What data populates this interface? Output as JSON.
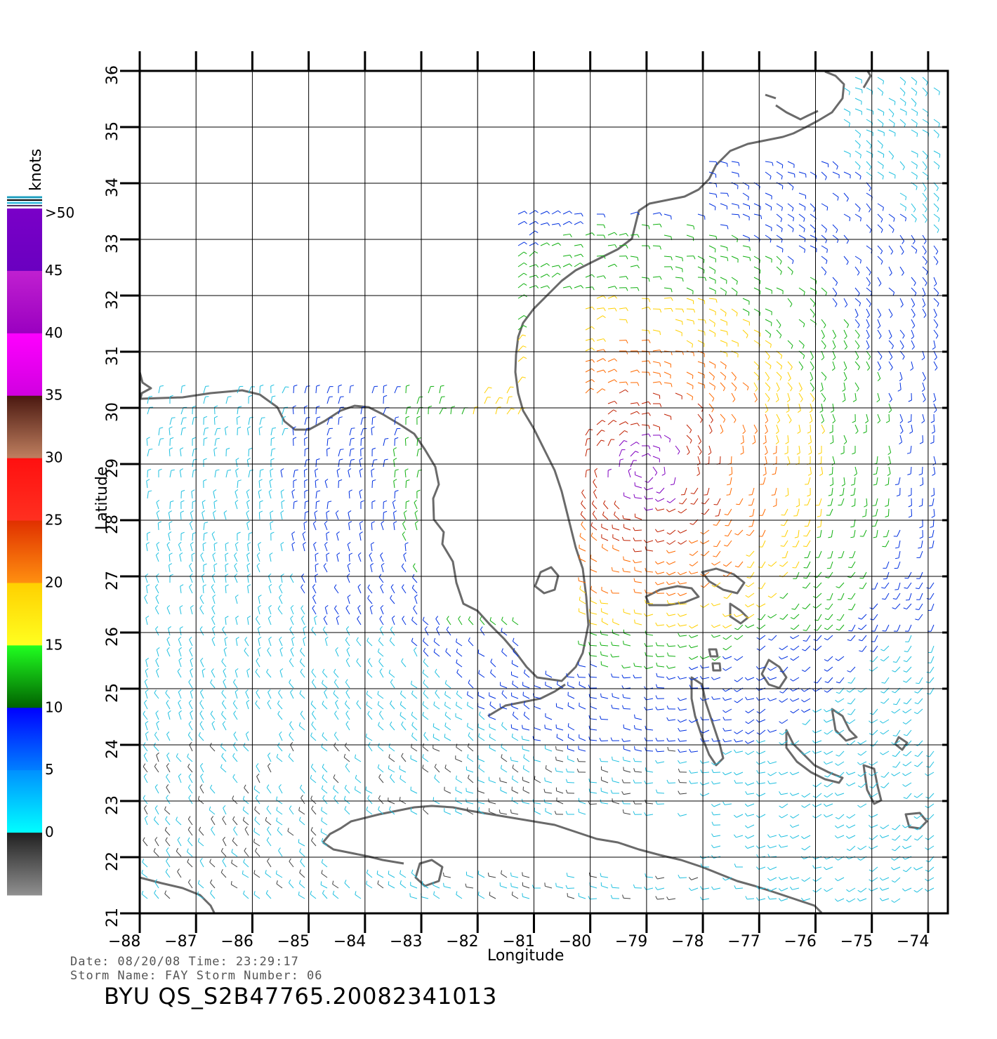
{
  "colorbar": {
    "title": "knots",
    "labels": [
      ">50",
      "45",
      "40",
      "35",
      "30",
      "25",
      "20",
      "15",
      "10",
      "5",
      "0"
    ],
    "segments": [
      {
        "from": "#7a00c8",
        "to": "#6a00c0"
      },
      {
        "from": "#c020d0",
        "to": "#9a00c0"
      },
      {
        "from": "#ff00ff",
        "to": "#d000e0"
      },
      {
        "from": "#4a1810",
        "to": "#c08060"
      },
      {
        "from": "#ff1010",
        "to": "#ff3020"
      },
      {
        "from": "#e03000",
        "to": "#ff9010"
      },
      {
        "from": "#ffd000",
        "to": "#ffff20"
      },
      {
        "from": "#20ff20",
        "to": "#006000"
      },
      {
        "from": "#0000ff",
        "to": "#0080ff"
      },
      {
        "from": "#0090ff",
        "to": "#00ffff"
      },
      {
        "from": "#202020",
        "to": "#909090"
      }
    ]
  },
  "axes": {
    "xlabel": "Longitude",
    "ylabel": "Latitude",
    "lon_ticks": [
      "-88",
      "-87",
      "-86",
      "-85",
      "-84",
      "-83",
      "-82",
      "-81",
      "-80",
      "-79",
      "-78",
      "-77",
      "-76",
      "-75",
      "-74"
    ],
    "lat_ticks": [
      "21",
      "22",
      "23",
      "24",
      "25",
      "26",
      "27",
      "28",
      "29",
      "30",
      "31",
      "32",
      "33",
      "34",
      "35",
      "36"
    ],
    "lon_range": [
      -88,
      -73.65
    ],
    "lat_range": [
      21,
      36
    ]
  },
  "coastline_color": "#6a6a6a",
  "footer": {
    "line1": "Date: 08/20/08   Time: 23:29:17",
    "line2": "Storm  Name: FAY   Storm  Number: 06",
    "file_id": "BYU  QS_S2B47765.20082341013"
  }
}
